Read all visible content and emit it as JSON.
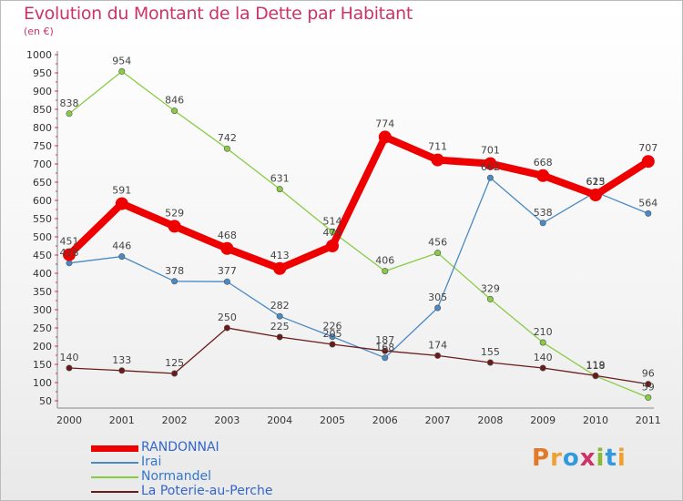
{
  "header": {
    "title": "Evolution du Montant de la Dette par Habitant",
    "subtitle": "(en €)"
  },
  "logo": {
    "text": "Proxiti",
    "letter_colors": [
      "#e07a2a",
      "#f0a030",
      "#3399dd",
      "#cc3366",
      "#88bb33",
      "#3399dd",
      "#f0a030"
    ]
  },
  "chart_data": {
    "type": "line",
    "title": "Evolution du Montant de la Dette par Habitant",
    "subtitle": "(en €)",
    "xlabel": "",
    "ylabel": "",
    "x": [
      "2000",
      "2001",
      "2002",
      "2003",
      "2004",
      "2005",
      "2006",
      "2007",
      "2008",
      "2009",
      "2010",
      "2011"
    ],
    "ylim": [
      50,
      1000
    ],
    "yticks": [
      50,
      100,
      150,
      200,
      250,
      300,
      350,
      400,
      450,
      500,
      550,
      600,
      650,
      700,
      750,
      800,
      850,
      900,
      950,
      1000
    ],
    "grid": false,
    "legend_position": "bottom-left",
    "series": [
      {
        "name": "RANDONNAI",
        "color": "#ee0000",
        "values": [
          451,
          591,
          529,
          468,
          413,
          475,
          774,
          711,
          701,
          668,
          615,
          707
        ],
        "labels": [
          "451",
          "591",
          "529",
          "468",
          "413",
          "475",
          "774",
          "711",
          "701",
          "668",
          "615",
          "707"
        ]
      },
      {
        "name": "Irai",
        "color": "#4a8ac4",
        "values": [
          428,
          446,
          378,
          377,
          282,
          226,
          168,
          305,
          662,
          538,
          623,
          564
        ],
        "labels": [
          "428",
          "446",
          "378",
          "377",
          "282",
          "226",
          "168",
          "305",
          "662",
          "538",
          "623",
          "564"
        ]
      },
      {
        "name": "Normandel",
        "color": "#88cc44",
        "values": [
          838,
          954,
          846,
          742,
          631,
          514,
          406,
          456,
          329,
          210,
          118,
          59
        ],
        "labels": [
          "838",
          "954",
          "846",
          "742",
          "631",
          "514",
          "406",
          "456",
          "329",
          "210",
          "118",
          "59"
        ]
      },
      {
        "name": "La Poterie-au-Perche",
        "color": "#6b1a1a",
        "values": [
          140,
          133,
          125,
          250,
          225,
          205,
          187,
          174,
          155,
          140,
          119,
          96
        ],
        "labels": [
          "140",
          "133",
          "125",
          "250",
          "225",
          "205",
          "187",
          "174",
          "155",
          "140",
          "119",
          "96"
        ]
      }
    ]
  }
}
